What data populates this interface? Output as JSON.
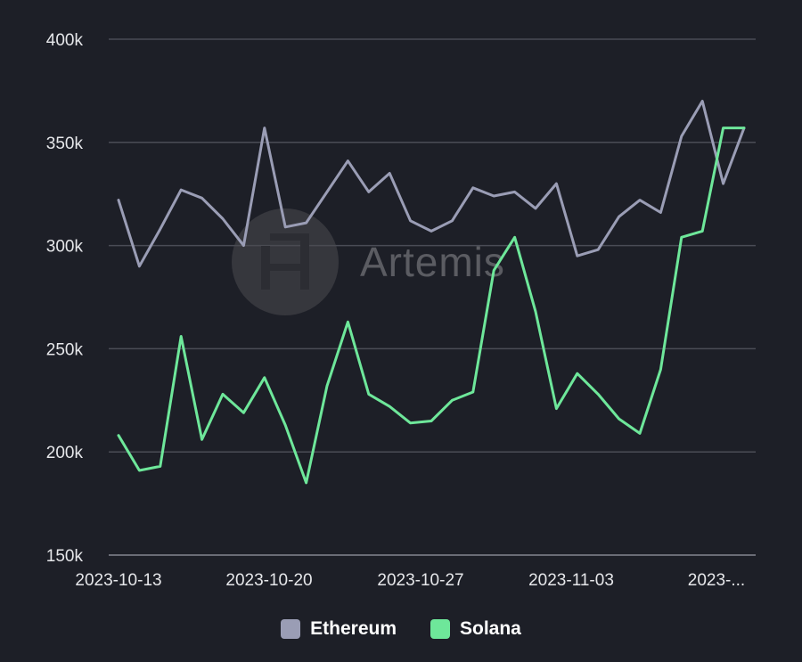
{
  "colors": {
    "background": "#1d1f27",
    "grid": "#4a4c56",
    "axis": "#6a6c76",
    "tick_text": "#e6e7ea"
  },
  "watermark": {
    "text": "Artemis"
  },
  "chart_data": {
    "type": "line",
    "x_tick_labels": [
      "2023-10-13",
      "2023-10-20",
      "2023-10-27",
      "2023-11-03",
      "2023-..."
    ],
    "y_tick_labels": [
      "150k",
      "200k",
      "250k",
      "300k",
      "350k",
      "400k"
    ],
    "ylim": [
      150000,
      400000
    ],
    "y_ticks": [
      150000,
      200000,
      250000,
      300000,
      350000,
      400000
    ],
    "grid": true,
    "legend_position": "bottom",
    "x": [
      "2023-10-13",
      "2023-10-14",
      "2023-10-15",
      "2023-10-16",
      "2023-10-17",
      "2023-10-18",
      "2023-10-19",
      "2023-10-20",
      "2023-10-21",
      "2023-10-22",
      "2023-10-23",
      "2023-10-24",
      "2023-10-25",
      "2023-10-26",
      "2023-10-27",
      "2023-10-28",
      "2023-10-29",
      "2023-10-30",
      "2023-10-31",
      "2023-11-01",
      "2023-11-02",
      "2023-11-03",
      "2023-11-04",
      "2023-11-05",
      "2023-11-06",
      "2023-11-07",
      "2023-11-08",
      "2023-11-09",
      "2023-11-10",
      "2023-11-11",
      "2023-11-12"
    ],
    "series": [
      {
        "name": "Ethereum",
        "color": "#9a9db5",
        "values": [
          322000,
          290000,
          308000,
          327000,
          323000,
          313000,
          300000,
          357000,
          309000,
          311000,
          326000,
          341000,
          326000,
          335000,
          312000,
          307000,
          312000,
          328000,
          324000,
          326000,
          318000,
          330000,
          295000,
          298000,
          314000,
          322000,
          316000,
          353000,
          370000,
          330000,
          357000
        ]
      },
      {
        "name": "Solana",
        "color": "#6ee79a",
        "values": [
          208000,
          191000,
          193000,
          256000,
          206000,
          228000,
          219000,
          236000,
          213000,
          185000,
          232000,
          263000,
          228000,
          222000,
          214000,
          215000,
          225000,
          229000,
          288000,
          304000,
          268000,
          221000,
          238000,
          228000,
          216000,
          209000,
          240000,
          304000,
          307000,
          357000,
          357000
        ]
      }
    ]
  },
  "legend": {
    "items": [
      {
        "label": "Ethereum",
        "color": "#9a9db5"
      },
      {
        "label": "Solana",
        "color": "#6ee79a"
      }
    ]
  }
}
